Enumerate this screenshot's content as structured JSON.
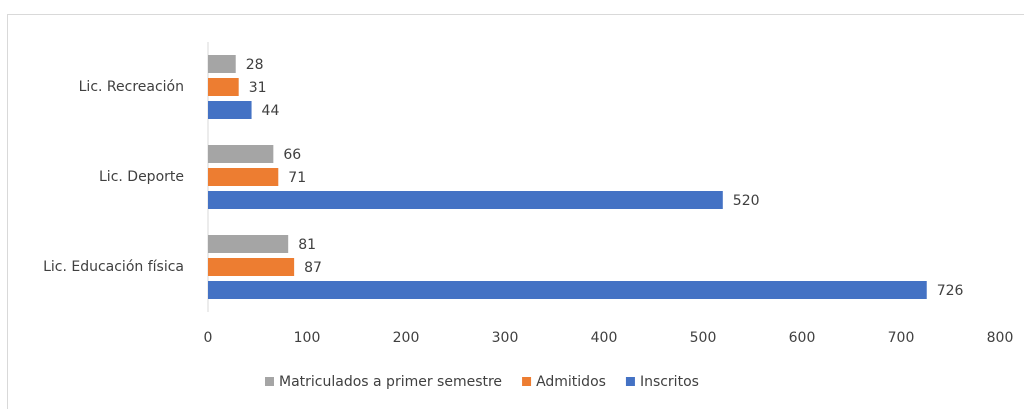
{
  "chart_data": {
    "type": "bar",
    "orientation": "horizontal",
    "categories": [
      "Lic. Recreación",
      "Lic. Deporte",
      "Lic. Educación física"
    ],
    "series": [
      {
        "name": "Matriculados a primer semestre",
        "color": "#a5a5a5",
        "values": [
          28,
          66,
          81
        ]
      },
      {
        "name": "Admitidos",
        "color": "#ed7d31",
        "values": [
          31,
          71,
          87
        ]
      },
      {
        "name": "Inscritos",
        "color": "#4472c4",
        "values": [
          44,
          520,
          726
        ]
      }
    ],
    "xlim": [
      0,
      800
    ],
    "xticks": [
      0,
      100,
      200,
      300,
      400,
      500,
      600,
      700,
      800
    ],
    "grid": false,
    "legend": "bottom"
  }
}
